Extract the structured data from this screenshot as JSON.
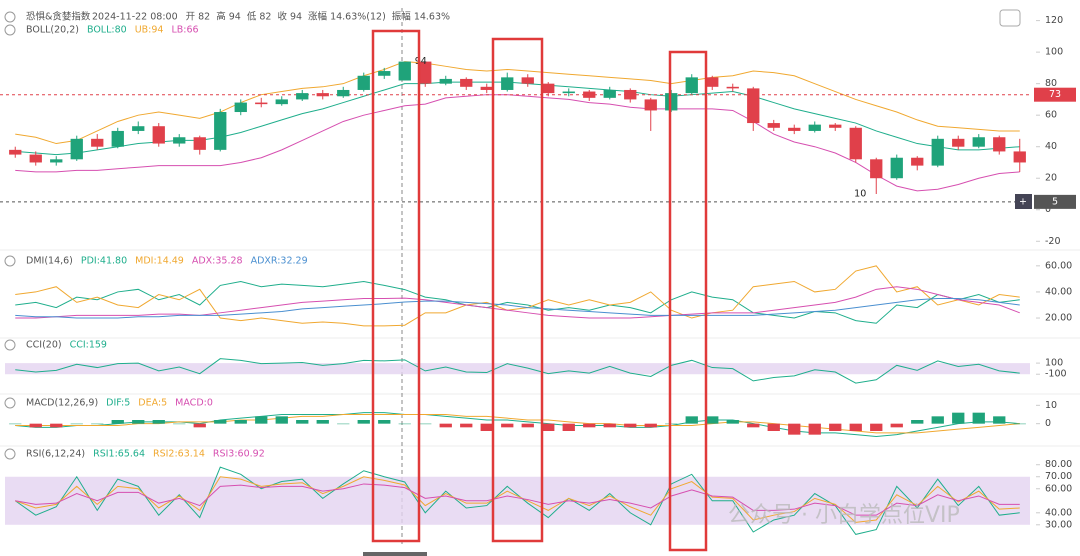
{
  "header": {
    "title": "恐惧&贪婪指数",
    "datetime": "2024-11-22 08:00",
    "stats": [
      "开 82",
      "高 94",
      "低 82",
      "收 94",
      "涨幅 14.63%(12)",
      "振幅 14.63%"
    ]
  },
  "watermark": "公众号 · 小白学点位VIP",
  "chart_data": [
    {
      "type": "candlestick",
      "label": "BOLL(20,2)",
      "up_color": "#1fa37a",
      "down_color": "#e0404a",
      "ylim": [
        -23,
        128
      ],
      "yticks": [
        120,
        100,
        80,
        60,
        40,
        20,
        0,
        -20
      ],
      "price_lines": [
        {
          "value": 73,
          "color": "#e0404a"
        },
        {
          "value": 5,
          "color": "#555555"
        }
      ],
      "ohlc": [
        [
          38,
          40,
          33,
          35
        ],
        [
          35,
          37,
          28,
          30
        ],
        [
          30,
          34,
          28,
          32
        ],
        [
          32,
          47,
          31,
          45
        ],
        [
          45,
          48,
          38,
          40
        ],
        [
          40,
          52,
          39,
          50
        ],
        [
          50,
          56,
          48,
          53
        ],
        [
          53,
          55,
          40,
          42
        ],
        [
          42,
          48,
          40,
          46
        ],
        [
          46,
          47,
          35,
          38
        ],
        [
          38,
          64,
          37,
          62
        ],
        [
          62,
          70,
          60,
          68
        ],
        [
          68,
          71,
          65,
          67
        ],
        [
          67,
          72,
          66,
          70
        ],
        [
          70,
          76,
          69,
          74
        ],
        [
          74,
          76,
          70,
          72
        ],
        [
          72,
          78,
          71,
          76
        ],
        [
          76,
          87,
          75,
          85
        ],
        [
          85,
          90,
          83,
          88
        ],
        [
          82,
          94,
          82,
          94
        ],
        [
          94,
          94,
          78,
          80
        ],
        [
          80,
          85,
          79,
          83
        ],
        [
          83,
          84,
          76,
          78
        ],
        [
          78,
          80,
          74,
          76
        ],
        [
          76,
          87,
          75,
          84
        ],
        [
          84,
          86,
          78,
          80
        ],
        [
          80,
          81,
          72,
          74
        ],
        [
          74,
          77,
          72,
          75
        ],
        [
          75,
          76,
          69,
          71
        ],
        [
          71,
          78,
          70,
          76
        ],
        [
          76,
          77,
          68,
          70
        ],
        [
          70,
          71,
          50,
          63
        ],
        [
          63,
          76,
          62,
          74
        ],
        [
          74,
          86,
          73,
          84
        ],
        [
          84,
          85,
          76,
          78
        ],
        [
          78,
          80,
          75,
          77
        ],
        [
          77,
          78,
          50,
          55
        ],
        [
          55,
          57,
          50,
          52
        ],
        [
          52,
          54,
          48,
          50
        ],
        [
          50,
          56,
          49,
          54
        ],
        [
          54,
          55,
          50,
          52
        ],
        [
          52,
          53,
          30,
          32
        ],
        [
          32,
          33,
          10,
          20
        ],
        [
          20,
          35,
          19,
          33
        ],
        [
          33,
          34,
          25,
          28
        ],
        [
          28,
          47,
          27,
          45
        ],
        [
          45,
          47,
          38,
          40
        ],
        [
          40,
          48,
          39,
          46
        ],
        [
          46,
          47,
          35,
          37
        ],
        [
          37,
          45,
          24,
          30
        ]
      ],
      "series": [
        {
          "name": "BOLL:80",
          "color": "#1fae8c",
          "values": [
            37,
            36,
            35,
            36,
            38,
            40,
            42,
            43,
            44,
            44,
            46,
            49,
            53,
            57,
            61,
            64,
            68,
            72,
            76,
            80,
            80,
            81,
            81,
            81,
            81,
            80,
            79,
            78,
            77,
            76,
            75,
            73,
            72,
            73,
            74,
            75,
            72,
            68,
            64,
            61,
            58,
            55,
            50,
            46,
            42,
            40,
            38,
            38,
            39,
            40
          ]
        },
        {
          "name": "UB:94",
          "color": "#f0a830",
          "values": [
            48,
            46,
            42,
            44,
            50,
            56,
            60,
            62,
            60,
            58,
            62,
            68,
            73,
            75,
            77,
            78,
            80,
            85,
            89,
            94,
            93,
            91,
            89,
            88,
            89,
            88,
            87,
            86,
            85,
            84,
            83,
            82,
            80,
            82,
            84,
            85,
            88,
            87,
            85,
            80,
            75,
            70,
            66,
            62,
            57,
            53,
            52,
            51,
            50,
            50
          ]
        },
        {
          "name": "LB:66",
          "color": "#d64fb0",
          "values": [
            25,
            24,
            24,
            25,
            25,
            26,
            27,
            28,
            28,
            28,
            28,
            30,
            33,
            38,
            44,
            50,
            56,
            60,
            63,
            66,
            67,
            71,
            72,
            73,
            73,
            72,
            71,
            70,
            68,
            67,
            65,
            64,
            64,
            64,
            64,
            63,
            56,
            48,
            43,
            40,
            36,
            30,
            22,
            15,
            12,
            13,
            16,
            20,
            23,
            24
          ]
        }
      ]
    },
    {
      "type": "line",
      "label": "DMI(14,6)",
      "ylim": [
        7,
        66
      ],
      "yticks": [
        {
          "value": 60,
          "label": "60.00"
        },
        {
          "value": 40,
          "label": "40.00"
        },
        {
          "value": 20,
          "label": "20.00"
        }
      ],
      "series": [
        {
          "name": "PDI:41.80",
          "color": "#1fae8c",
          "values": [
            30,
            32,
            28,
            36,
            34,
            40,
            42,
            34,
            38,
            30,
            45,
            48,
            44,
            46,
            45,
            44,
            46,
            48,
            45,
            41.8,
            36,
            34,
            30,
            28,
            32,
            30,
            26,
            28,
            26,
            30,
            28,
            24,
            34,
            40,
            36,
            34,
            24,
            22,
            20,
            25,
            24,
            18,
            16,
            30,
            28,
            38,
            34,
            38,
            32,
            34
          ]
        },
        {
          "name": "MDI:14.49",
          "color": "#f0a830",
          "values": [
            38,
            40,
            44,
            32,
            36,
            30,
            28,
            38,
            34,
            42,
            20,
            18,
            20,
            18,
            16,
            17,
            16,
            14,
            14,
            14.49,
            24,
            24,
            30,
            32,
            26,
            28,
            34,
            30,
            34,
            30,
            32,
            40,
            26,
            20,
            24,
            26,
            44,
            46,
            48,
            40,
            42,
            56,
            60,
            40,
            44,
            30,
            34,
            30,
            38,
            36
          ]
        },
        {
          "name": "ADX:35.28",
          "color": "#d64fb0",
          "values": [
            20,
            20,
            21,
            22,
            22,
            22,
            22,
            23,
            23,
            22,
            24,
            26,
            28,
            30,
            32,
            33,
            34,
            35,
            35,
            35.28,
            34,
            32,
            30,
            28,
            26,
            24,
            22,
            21,
            20,
            20,
            20,
            21,
            22,
            23,
            24,
            24,
            24,
            26,
            28,
            30,
            32,
            36,
            42,
            44,
            42,
            38,
            34,
            32,
            30,
            24
          ]
        },
        {
          "name": "ADXR:32.29",
          "color": "#4a8fd0",
          "values": [
            22,
            21,
            21,
            20,
            20,
            20,
            21,
            21,
            22,
            22,
            22,
            23,
            24,
            25,
            27,
            28,
            29,
            30,
            31,
            32.29,
            33,
            33,
            32,
            31,
            30,
            28,
            27,
            26,
            25,
            24,
            23,
            22,
            22,
            22,
            22,
            22,
            22,
            23,
            24,
            25,
            26,
            28,
            30,
            32,
            34,
            35,
            35,
            34,
            32,
            30
          ]
        }
      ]
    },
    {
      "type": "line",
      "label": "CCI(20)",
      "ylim": [
        -420,
        300
      ],
      "yticks": [
        100,
        -100
      ],
      "band": [
        -100,
        100
      ],
      "band_color": "#e3d3f0",
      "series": [
        {
          "name": "CCI:159",
          "color": "#1fae8c",
          "values": [
            -20,
            -60,
            -30,
            80,
            20,
            90,
            100,
            -40,
            30,
            -90,
            180,
            150,
            90,
            100,
            110,
            60,
            90,
            150,
            140,
            159,
            -40,
            30,
            -60,
            -70,
            90,
            10,
            -90,
            -40,
            -80,
            40,
            -80,
            -140,
            60,
            150,
            20,
            0,
            -220,
            -160,
            -130,
            -20,
            -60,
            -260,
            -200,
            60,
            -30,
            140,
            40,
            80,
            -40,
            -80
          ]
        }
      ]
    },
    {
      "type": "line",
      "label": "MACD(12,26,9)",
      "ylim": [
        -10,
        14
      ],
      "yticks": [
        10,
        0
      ],
      "up_color": "#1fa37a",
      "down_color": "#e0404a",
      "series": [
        {
          "name": "DIF:5",
          "color": "#1fae8c",
          "values": [
            -1,
            -2,
            -2,
            -1,
            -1,
            0,
            1,
            1,
            1,
            0,
            2,
            3,
            4,
            5,
            5,
            5,
            5,
            6,
            6,
            5,
            5,
            4,
            3,
            2,
            2,
            1,
            0,
            -1,
            -1,
            -1,
            -2,
            -2,
            -1,
            1,
            2,
            2,
            0,
            -2,
            -4,
            -5,
            -5,
            -6,
            -7,
            -6,
            -4,
            -2,
            0,
            1,
            1,
            0
          ]
        },
        {
          "name": "DEA:5",
          "color": "#f0a830",
          "values": [
            -1,
            -1,
            -1,
            -1,
            -1,
            -1,
            0,
            0,
            1,
            1,
            1,
            2,
            2,
            3,
            4,
            4,
            5,
            5,
            5,
            5,
            5,
            5,
            4,
            4,
            3,
            2,
            2,
            1,
            0,
            0,
            -1,
            -1,
            -1,
            -1,
            0,
            1,
            1,
            0,
            -1,
            -2,
            -3,
            -4,
            -5,
            -5,
            -5,
            -4,
            -3,
            -2,
            -1,
            0
          ]
        },
        {
          "name": "MACD:0",
          "color": "#d64fb0",
          "kind": "histogram",
          "values": [
            0,
            -2,
            -2,
            0,
            0,
            2,
            2,
            2,
            0,
            -2,
            2,
            2,
            4,
            4,
            2,
            2,
            0,
            2,
            2,
            0,
            0,
            -2,
            -2,
            -4,
            -2,
            -2,
            -4,
            -4,
            -2,
            -2,
            -2,
            -2,
            0,
            4,
            4,
            2,
            -2,
            -4,
            -6,
            -6,
            -4,
            -4,
            -4,
            -2,
            2,
            4,
            6,
            6,
            4,
            0
          ]
        }
      ]
    },
    {
      "type": "line",
      "label": "RSI(6,12,24)",
      "ylim": [
        24,
        85.6
      ],
      "band": [
        30,
        70
      ],
      "band_color": "#e3d3f0",
      "yticks": [
        {
          "value": 80,
          "label": "80.00"
        },
        {
          "value": 70,
          "label": "70.00"
        },
        {
          "value": 60,
          "label": "60.00"
        },
        {
          "value": 40,
          "label": "40.00"
        },
        {
          "value": 30,
          "label": "30.00"
        }
      ],
      "series": [
        {
          "name": "RSI1:65.64",
          "color": "#1fae8c",
          "values": [
            50,
            38,
            45,
            70,
            42,
            68,
            62,
            38,
            55,
            36,
            78,
            72,
            60,
            66,
            68,
            52,
            64,
            75,
            70,
            65.64,
            40,
            58,
            44,
            46,
            62,
            48,
            36,
            52,
            42,
            56,
            40,
            30,
            64,
            72,
            50,
            50,
            24,
            34,
            38,
            56,
            46,
            22,
            26,
            62,
            44,
            68,
            46,
            62,
            38,
            40
          ]
        },
        {
          "name": "RSI2:63.14",
          "color": "#f0a830",
          "values": [
            50,
            44,
            47,
            62,
            47,
            62,
            60,
            44,
            54,
            42,
            70,
            68,
            62,
            64,
            65,
            56,
            62,
            70,
            67,
            63.14,
            46,
            56,
            48,
            48,
            58,
            50,
            42,
            52,
            46,
            54,
            45,
            38,
            60,
            66,
            53,
            52,
            34,
            38,
            41,
            52,
            47,
            32,
            34,
            55,
            46,
            62,
            49,
            58,
            43,
            44
          ]
        },
        {
          "name": "RSI3:60.92",
          "color": "#d64fb0",
          "values": [
            50,
            47,
            48,
            56,
            50,
            57,
            57,
            48,
            52,
            46,
            62,
            63,
            61,
            62,
            62,
            58,
            60,
            64,
            63,
            60.92,
            52,
            54,
            50,
            50,
            54,
            51,
            47,
            50,
            48,
            51,
            48,
            44,
            54,
            59,
            54,
            53,
            42,
            42,
            43,
            48,
            46,
            38,
            38,
            48,
            46,
            55,
            50,
            54,
            47,
            47
          ]
        }
      ]
    }
  ]
}
